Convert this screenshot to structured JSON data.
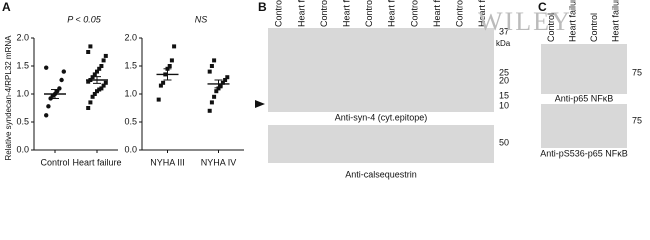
{
  "panel_labels": [
    "A",
    "B",
    "C"
  ],
  "chart_data": [
    {
      "type": "dot",
      "y_label": "Relative syndecan-4/RPL32 mRNA",
      "annotation": "P < 0.05",
      "categories": [
        "Control",
        "Heart failure"
      ],
      "markers": [
        "circle",
        "square"
      ],
      "values": [
        [
          0.62,
          0.78,
          0.92,
          0.97,
          1.0,
          1.05,
          1.1,
          1.25,
          1.4,
          1.47
        ],
        [
          0.75,
          0.85,
          0.95,
          1.0,
          1.05,
          1.08,
          1.1,
          1.15,
          1.2,
          1.22,
          1.25,
          1.3,
          1.35,
          1.4,
          1.45,
          1.5,
          1.6,
          1.68,
          1.75,
          1.85
        ]
      ],
      "mean": [
        1.0,
        1.25
      ],
      "sem": [
        0.08,
        0.06
      ],
      "color": "#111111",
      "ylim": [
        0,
        2
      ],
      "yticks": [
        {
          "value": 0,
          "label": "0.0"
        },
        {
          "value": 0.5,
          "label": "0.5"
        },
        {
          "value": 1,
          "label": "1.0"
        },
        {
          "value": 1.5,
          "label": "1.5"
        },
        {
          "value": 2,
          "label": "2.0"
        }
      ]
    },
    {
      "type": "dot",
      "annotation": "NS",
      "categories": [
        "NYHA III",
        "NYHA IV"
      ],
      "markers": [
        "square",
        "square"
      ],
      "values": [
        [
          0.9,
          1.15,
          1.2,
          1.35,
          1.45,
          1.5,
          1.6,
          1.85
        ],
        [
          0.7,
          0.85,
          0.95,
          1.05,
          1.1,
          1.15,
          1.2,
          1.25,
          1.3,
          1.4,
          1.5,
          1.6
        ]
      ],
      "mean": [
        1.35,
        1.18
      ],
      "sem": [
        0.1,
        0.07
      ],
      "color": "#111111",
      "ylim": [
        0,
        2
      ],
      "yticks": [
        {
          "value": 0,
          "label": "0.0"
        },
        {
          "value": 0.5,
          "label": "0.5"
        },
        {
          "value": 1,
          "label": "1.0"
        },
        {
          "value": 1.5,
          "label": "1.5"
        },
        {
          "value": 2,
          "label": "2.0"
        }
      ]
    }
  ],
  "blots": {
    "B": {
      "lanes": [
        "Control",
        "Heart failure",
        "Control",
        "Heart failure",
        "Control",
        "Heart failure",
        "Control",
        "Heart failure",
        "Control",
        "Heart failure"
      ],
      "unit": "kDa",
      "top": {
        "markers": [
          "37",
          "25",
          "20",
          "15",
          "10"
        ],
        "caption": "Anti-syn-4 (cyt.epitope)"
      },
      "bottom": {
        "markers": [
          "50"
        ],
        "caption": "Anti-calsequestrin"
      }
    },
    "C": {
      "lanes": [
        "Control",
        "Heart failure",
        "Control",
        "Heart failure"
      ],
      "top": {
        "markers": [
          "75"
        ],
        "caption": "Anti-p65 NFκB"
      },
      "bottom": {
        "markers": [
          "75"
        ],
        "caption": "Anti-pS536-p65 NFκB"
      }
    }
  },
  "watermark": "WILEY"
}
